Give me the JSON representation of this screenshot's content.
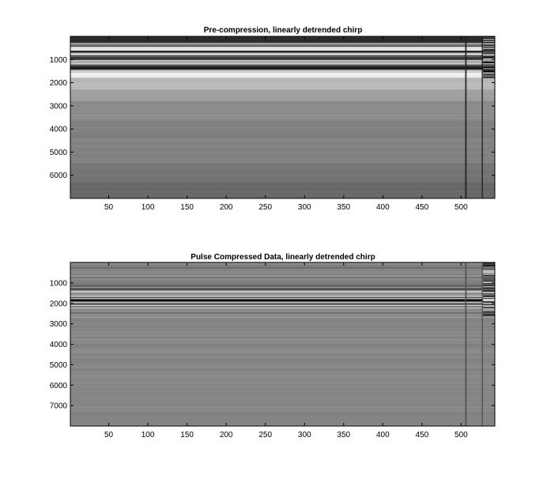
{
  "figure": {
    "background": "#ffffff",
    "axes_color": "#000000"
  },
  "chart_data": [
    {
      "type": "heatmap",
      "title": "Pre-compression, linearly detrended chirp",
      "xlabel": "",
      "ylabel": "",
      "colormap": "gray",
      "xlim": [
        1,
        543
      ],
      "ylim": [
        7000,
        0
      ],
      "y_reversed": true,
      "xticks": [
        50,
        100,
        150,
        200,
        250,
        300,
        350,
        400,
        450,
        500
      ],
      "yticks": [
        1000,
        2000,
        3000,
        4000,
        5000,
        6000
      ],
      "bands": [
        {
          "y0": 0,
          "y1": 280,
          "gray": 0.17,
          "stripe": 0.05
        },
        {
          "y0": 280,
          "y1": 480,
          "gray": 0.55,
          "stripe": 0.35
        },
        {
          "y0": 480,
          "y1": 620,
          "gray": 0.9,
          "stripe": 0.1
        },
        {
          "y0": 620,
          "y1": 720,
          "gray": 0.2,
          "stripe": 0.2
        },
        {
          "y0": 720,
          "y1": 820,
          "gray": 0.85,
          "stripe": 0.2
        },
        {
          "y0": 820,
          "y1": 940,
          "gray": 0.35,
          "stripe": 0.3
        },
        {
          "y0": 940,
          "y1": 1020,
          "gray": 0.15,
          "stripe": 0.1
        },
        {
          "y0": 1020,
          "y1": 1120,
          "gray": 0.6,
          "stripe": 0.35
        },
        {
          "y0": 1120,
          "y1": 1220,
          "gray": 0.85,
          "stripe": 0.15
        },
        {
          "y0": 1220,
          "y1": 1290,
          "gray": 0.3,
          "stripe": 0.2
        },
        {
          "y0": 1290,
          "y1": 1440,
          "gray": 0.06,
          "stripe": 0.05
        },
        {
          "y0": 1440,
          "y1": 1600,
          "gray": 0.8,
          "stripe": 0.2
        },
        {
          "y0": 1600,
          "y1": 1800,
          "gray": 0.9,
          "stripe": 0.1
        },
        {
          "y0": 1800,
          "y1": 2300,
          "gray": 0.7,
          "stripe": 0.03
        },
        {
          "y0": 2300,
          "y1": 2800,
          "gray": 0.6,
          "stripe": 0.02
        },
        {
          "y0": 2800,
          "y1": 3600,
          "gray": 0.55,
          "stripe": 0.02
        },
        {
          "y0": 3600,
          "y1": 4500,
          "gray": 0.5,
          "stripe": 0.02
        },
        {
          "y0": 4500,
          "y1": 5500,
          "gray": 0.46,
          "stripe": 0.02
        },
        {
          "y0": 5500,
          "y1": 6300,
          "gray": 0.43,
          "stripe": 0.02
        },
        {
          "y0": 6300,
          "y1": 6700,
          "gray": 0.4,
          "stripe": 0.02
        },
        {
          "y0": 6700,
          "y1": 7000,
          "gray": 0.34,
          "stripe": 0.02
        }
      ],
      "vertical_features": [
        {
          "x": 506,
          "width": 2,
          "gray": 0.12
        },
        {
          "x": 527,
          "width": 1.5,
          "gray": 0.1
        }
      ],
      "right_block": {
        "x0": 528,
        "x1": 543,
        "y0": 0,
        "y1": 1800,
        "gray": 0.35,
        "stripe": 0.4
      }
    },
    {
      "type": "heatmap",
      "title": "Pulse Compressed Data, linearly detrended chirp",
      "xlabel": "",
      "ylabel": "",
      "colormap": "gray",
      "xlim": [
        1,
        543
      ],
      "ylim": [
        8000,
        0
      ],
      "y_reversed": true,
      "xticks": [
        50,
        100,
        150,
        200,
        250,
        300,
        350,
        400,
        450,
        500
      ],
      "yticks": [
        1000,
        2000,
        3000,
        4000,
        5000,
        6000,
        7000
      ],
      "bands": [
        {
          "y0": 0,
          "y1": 1100,
          "gray": 0.5,
          "stripe": 0.08
        },
        {
          "y0": 1100,
          "y1": 1500,
          "gray": 0.45,
          "stripe": 0.45
        },
        {
          "y0": 1500,
          "y1": 1700,
          "gray": 0.55,
          "stripe": 0.3
        },
        {
          "y0": 1700,
          "y1": 2300,
          "gray": 0.4,
          "stripe": 0.45
        },
        {
          "y0": 2300,
          "y1": 2700,
          "gray": 0.52,
          "stripe": 0.1
        },
        {
          "y0": 2700,
          "y1": 7400,
          "gray": 0.5,
          "stripe": 0.03
        },
        {
          "y0": 7400,
          "y1": 8000,
          "gray": 0.52,
          "stripe": 0.02
        }
      ],
      "vertical_features": [
        {
          "x": 506,
          "width": 2,
          "gray": 0.3
        },
        {
          "x": 527,
          "width": 1.5,
          "gray": 0.3
        }
      ],
      "right_block": {
        "x0": 528,
        "x1": 543,
        "y0": 0,
        "y1": 2600,
        "gray": 0.45,
        "stripe": 0.4
      }
    }
  ]
}
